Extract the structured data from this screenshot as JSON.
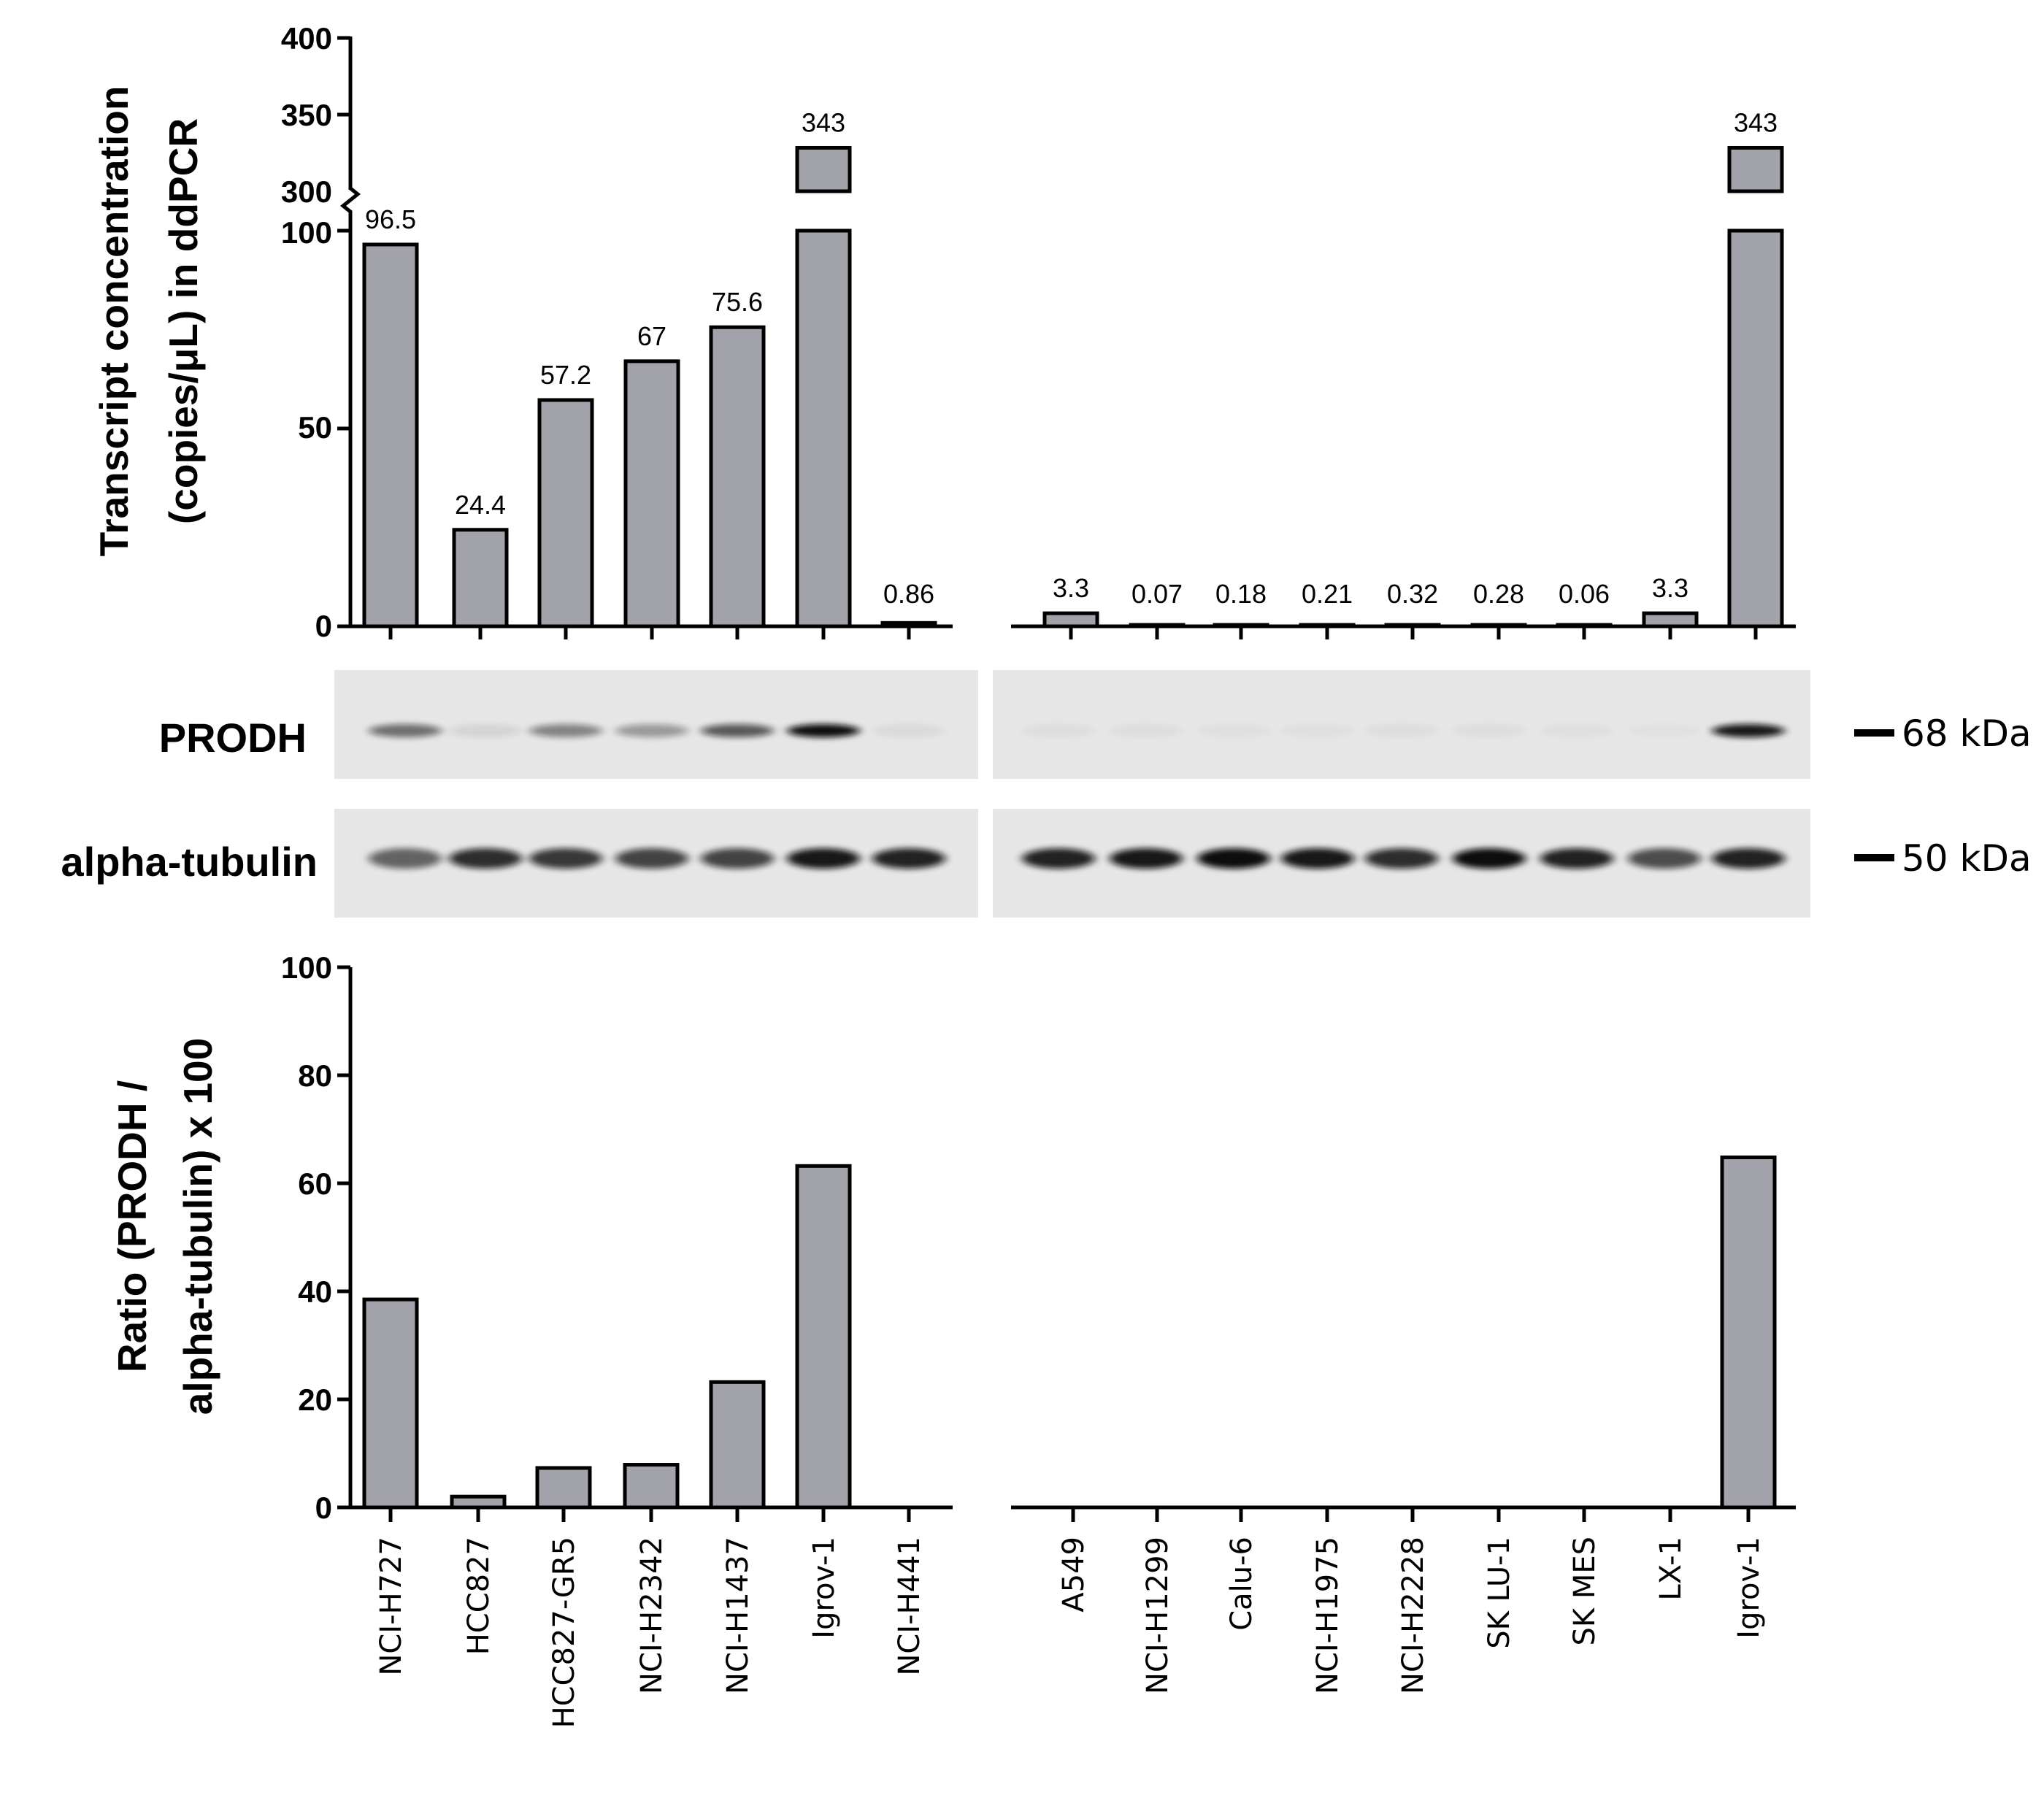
{
  "chart_data": [
    {
      "type": "bar",
      "ylabel_lines": [
        "Transcript concentration",
        "(copies/μL) in ddPCR"
      ],
      "y_axis": {
        "lower_range": [
          0,
          100
        ],
        "upper_range": [
          300,
          400
        ],
        "ticks": [
          "0",
          "50",
          "100",
          "300",
          "350",
          "400"
        ]
      },
      "panels": [
        {
          "categories": [
            "NCI-H727",
            "HCC827",
            "HCC827-GR5",
            "NCI-H2342",
            "NCI-H1437",
            "Igrov-1",
            "NCI-H441"
          ],
          "values": [
            96.5,
            24.4,
            57.2,
            67,
            75.6,
            343,
            0.86
          ],
          "labels": [
            "96.5",
            "24.4",
            "57.2",
            "67",
            "75.6",
            "343",
            "0.86"
          ]
        },
        {
          "categories": [
            "A549",
            "NCI-H1299",
            "Calu-6",
            "NCI-H1975",
            "NCI-H2228",
            "SK LU-1",
            "SK MES",
            "LX-1",
            "Igrov-1"
          ],
          "values": [
            3.3,
            0.07,
            0.18,
            0.21,
            0.32,
            0.28,
            0.06,
            3.3,
            343
          ],
          "labels": [
            "3.3",
            "0.07",
            "0.18",
            "0.21",
            "0.32",
            "0.28",
            "0.06",
            "3.3",
            "343"
          ]
        }
      ]
    },
    {
      "type": "bar",
      "ylabel_lines": [
        "Ratio (PRODH /",
        "alpha-tubulin) x 100"
      ],
      "ylim": [
        0,
        100
      ],
      "ticks": [
        "0",
        "20",
        "40",
        "60",
        "80",
        "100"
      ],
      "panels": [
        {
          "categories": [
            "NCI-H727",
            "HCC827",
            "HCC827-GR5",
            "NCI-H2342",
            "NCI-H1437",
            "Igrov-1",
            "NCI-H441"
          ],
          "values": [
            38.5,
            2,
            7.3,
            7.9,
            23.2,
            63.2,
            0
          ]
        },
        {
          "categories": [
            "A549",
            "NCI-H1299",
            "Calu-6",
            "NCI-H1975",
            "NCI-H2228",
            "SK LU-1",
            "SK MES",
            "LX-1",
            "Igrov-1"
          ],
          "values": [
            0,
            0,
            0,
            0,
            0,
            0,
            0,
            0,
            64.8
          ]
        }
      ]
    }
  ],
  "blots": {
    "rows": [
      {
        "label": "PRODH",
        "marker": "68 kDa",
        "left_intensity": [
          0.55,
          0.08,
          0.45,
          0.35,
          0.65,
          1.0,
          0.05
        ],
        "right_intensity": [
          0.04,
          0.04,
          0.03,
          0.03,
          0.04,
          0.04,
          0.03,
          0.02,
          0.95
        ]
      },
      {
        "label": "alpha-tubulin",
        "marker": "50 kDa",
        "left_intensity": [
          0.6,
          0.85,
          0.8,
          0.75,
          0.75,
          0.95,
          0.9
        ],
        "right_intensity": [
          0.9,
          0.95,
          1.0,
          0.95,
          0.85,
          1.0,
          0.9,
          0.7,
          0.9
        ]
      }
    ]
  },
  "colors": {
    "bar_fill": "#a2a2aa",
    "bar_stroke": "#000000",
    "blot_bg": "#e6e6e6",
    "band": "#111111"
  }
}
